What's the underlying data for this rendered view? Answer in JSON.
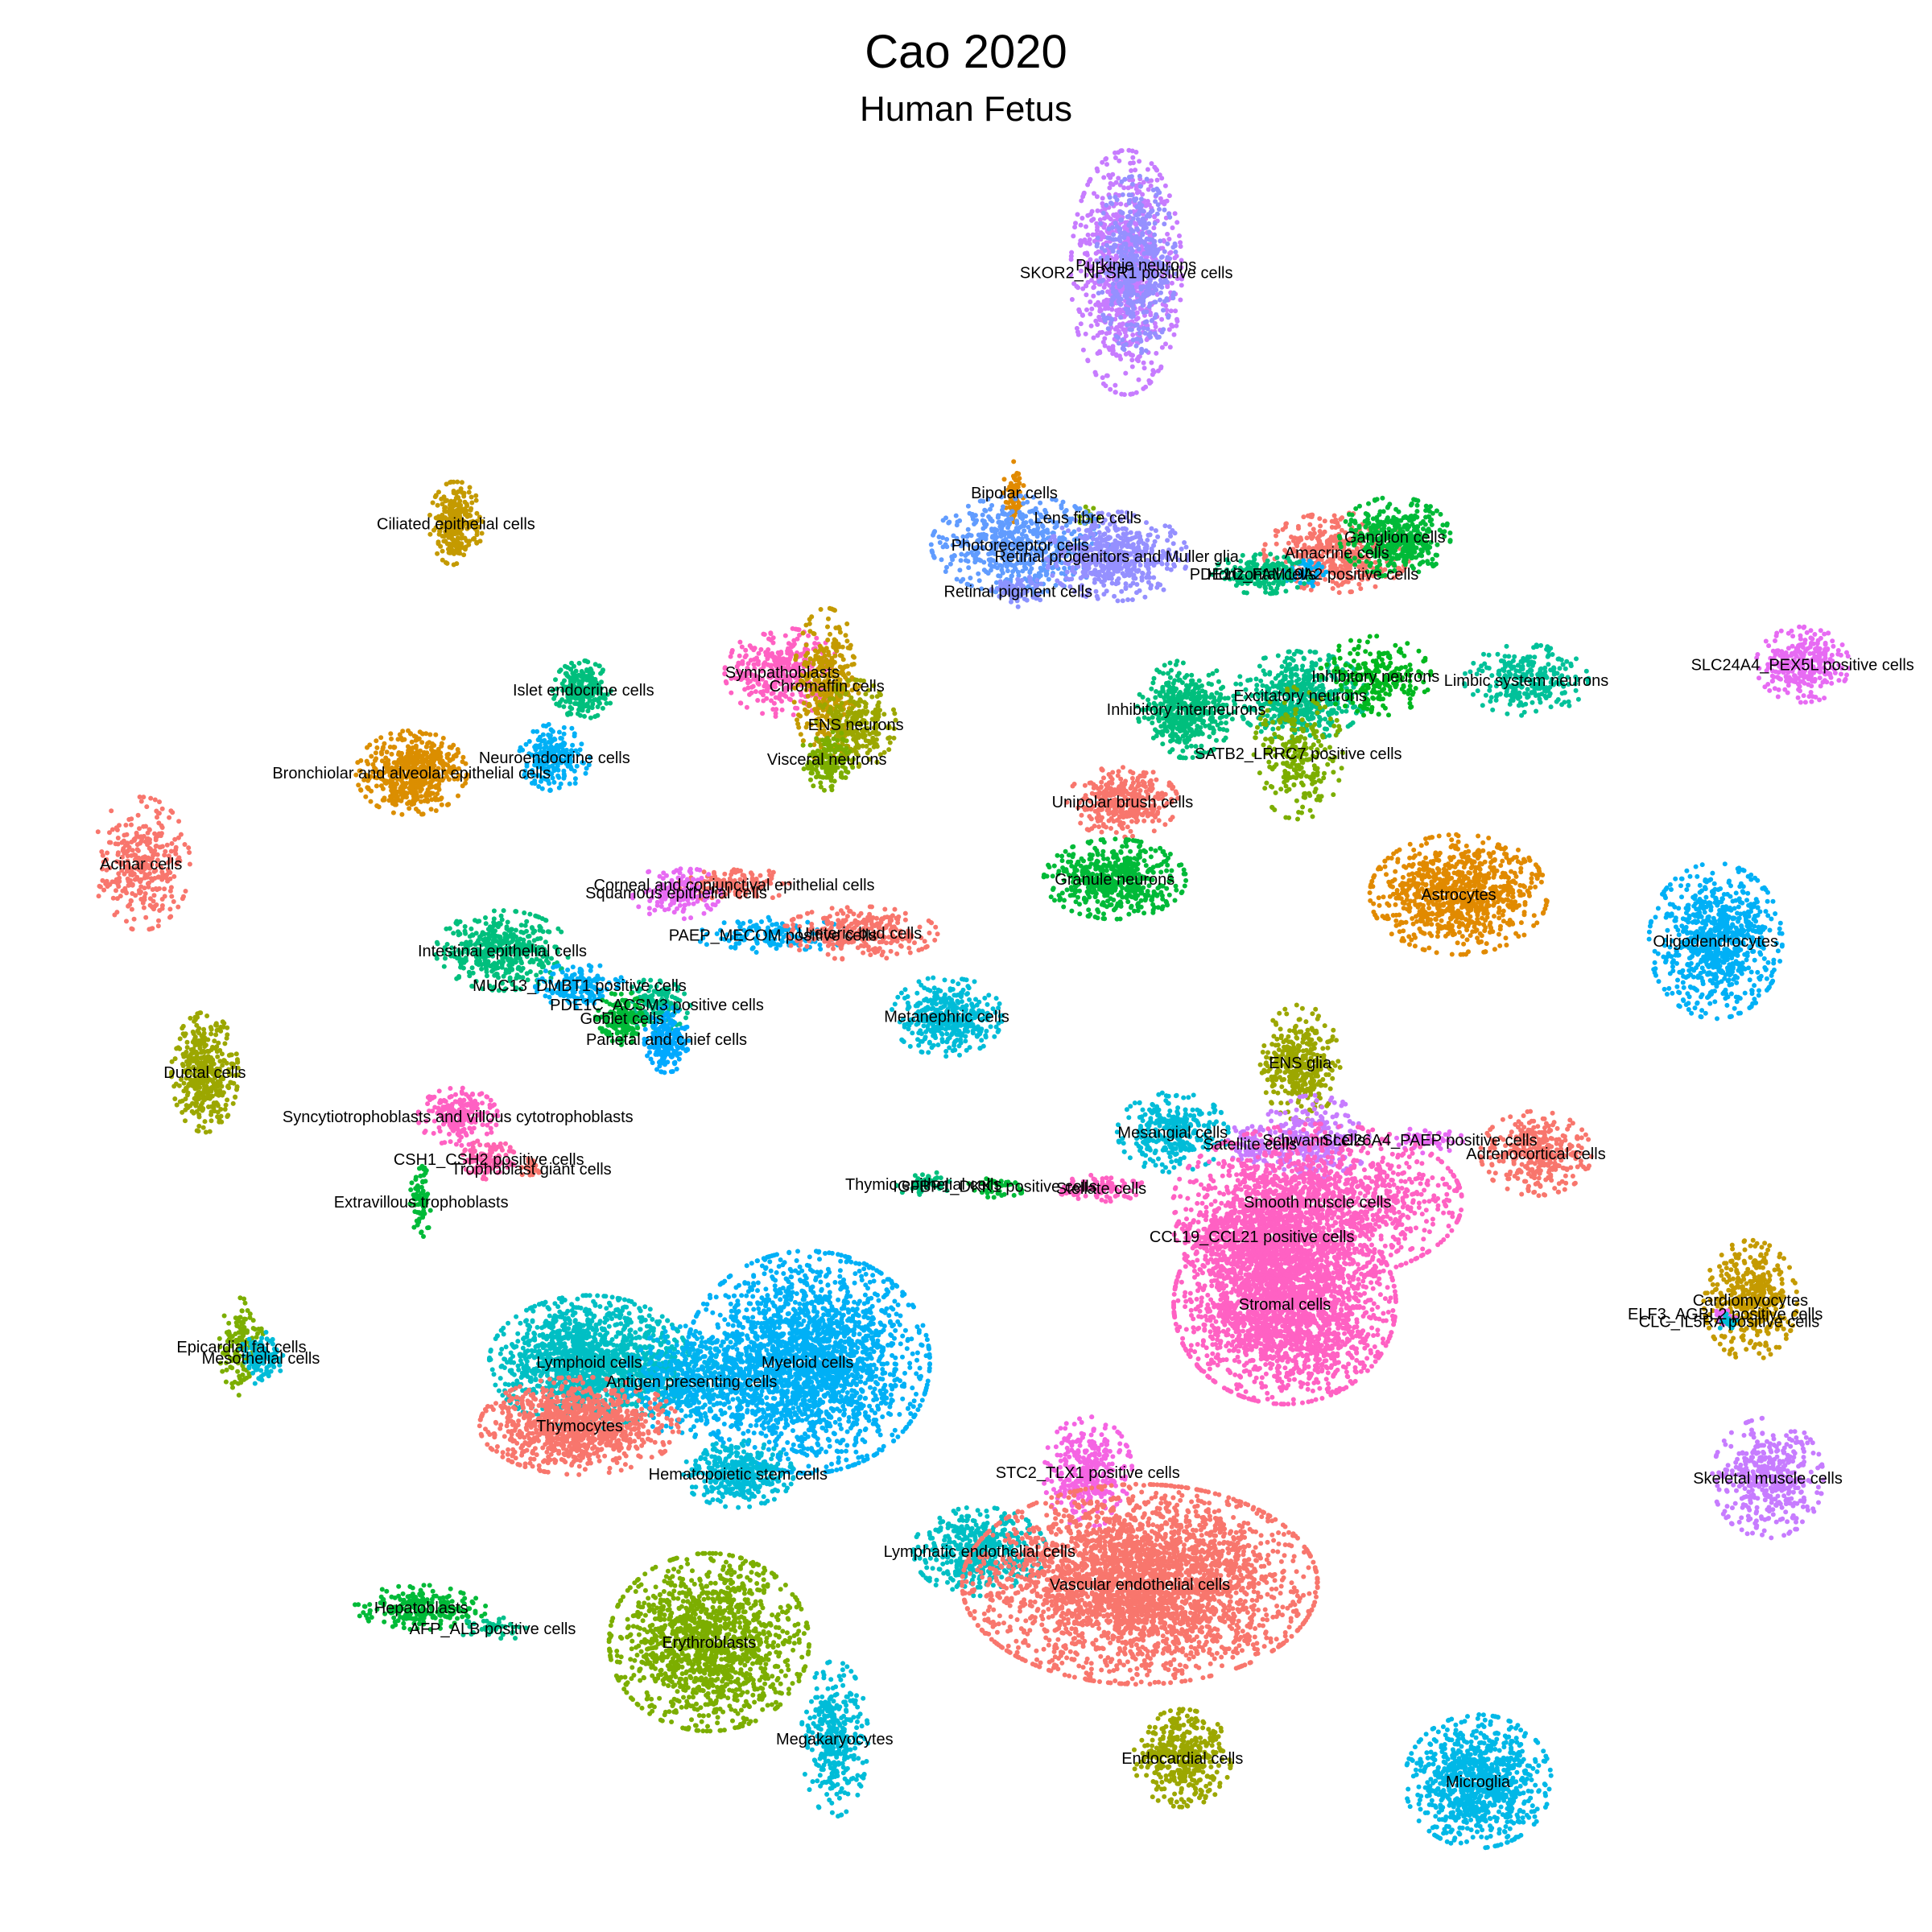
{
  "chart_data": {
    "type": "scatter",
    "title": "Cao 2020",
    "subtitle": "Human Fetus",
    "xlabel": "",
    "ylabel": "",
    "grid": false,
    "legend": "none",
    "clusters": [
      {
        "label": "SKOR2_NPSR1 positive cells",
        "color": "#C77CFF",
        "x": 0.583,
        "y": 0.141,
        "rx": 0.025,
        "ry": 0.055,
        "n": 900
      },
      {
        "label": "Purkinje neurons",
        "color": "#9590FF",
        "x": 0.588,
        "y": 0.137,
        "rx": 0.018,
        "ry": 0.04,
        "n": 500
      },
      {
        "label": "Bipolar cells",
        "color": "#E18A00",
        "x": 0.525,
        "y": 0.255,
        "rx": 0.005,
        "ry": 0.014,
        "n": 80
      },
      {
        "label": "Lens fibre cells",
        "color": "#7CAE00",
        "x": 0.563,
        "y": 0.268,
        "rx": 0.005,
        "ry": 0.005,
        "n": 20
      },
      {
        "label": "Photoreceptor cells",
        "color": "#619CFF",
        "x": 0.528,
        "y": 0.282,
        "rx": 0.04,
        "ry": 0.022,
        "n": 600
      },
      {
        "label": "Retinal progenitors and Muller glia",
        "color": "#9590FF",
        "x": 0.578,
        "y": 0.288,
        "rx": 0.032,
        "ry": 0.02,
        "n": 500
      },
      {
        "label": "Retinal pigment cells",
        "color": "#8B93FF",
        "x": 0.527,
        "y": 0.306,
        "rx": 0.012,
        "ry": 0.007,
        "n": 80
      },
      {
        "label": "Amacrine cells",
        "color": "#F8766D",
        "x": 0.692,
        "y": 0.286,
        "rx": 0.033,
        "ry": 0.018,
        "n": 450
      },
      {
        "label": "Ganglion cells",
        "color": "#00BA38",
        "x": 0.722,
        "y": 0.278,
        "rx": 0.025,
        "ry": 0.018,
        "n": 450
      },
      {
        "label": "PDE1C_FAM19A2 positive cells",
        "color": "#00B0F6",
        "x": 0.675,
        "y": 0.297,
        "rx": 0.01,
        "ry": 0.006,
        "n": 60
      },
      {
        "label": "Horizontal cells",
        "color": "#00BF7D",
        "x": 0.653,
        "y": 0.297,
        "rx": 0.022,
        "ry": 0.009,
        "n": 200
      },
      {
        "label": "Ciliated epithelial cells",
        "color": "#C49A00",
        "x": 0.236,
        "y": 0.271,
        "rx": 0.012,
        "ry": 0.019,
        "n": 260
      },
      {
        "label": "SLC24A4_PEX5L positive cells",
        "color": "#E76BF3",
        "x": 0.933,
        "y": 0.344,
        "rx": 0.021,
        "ry": 0.017,
        "n": 300
      },
      {
        "label": "Sympathoblasts",
        "color": "#FF61C3",
        "x": 0.405,
        "y": 0.348,
        "rx": 0.026,
        "ry": 0.02,
        "n": 350
      },
      {
        "label": "Chromaffin cells",
        "color": "#C49A00",
        "x": 0.428,
        "y": 0.355,
        "rx": 0.015,
        "ry": 0.035,
        "n": 350
      },
      {
        "label": "ENS neurons",
        "color": "#9CA700",
        "x": 0.443,
        "y": 0.375,
        "rx": 0.018,
        "ry": 0.02,
        "n": 250
      },
      {
        "label": "Visceral neurons",
        "color": "#7CAE00",
        "x": 0.428,
        "y": 0.393,
        "rx": 0.012,
        "ry": 0.014,
        "n": 150
      },
      {
        "label": "Islet endocrine cells",
        "color": "#00BF7D",
        "x": 0.302,
        "y": 0.357,
        "rx": 0.014,
        "ry": 0.013,
        "n": 230
      },
      {
        "label": "Neuroendocrine cells",
        "color": "#00B0F6",
        "x": 0.287,
        "y": 0.392,
        "rx": 0.016,
        "ry": 0.015,
        "n": 220
      },
      {
        "label": "Bronchiolar and alveolar epithelial cells",
        "color": "#DB8E00",
        "x": 0.213,
        "y": 0.4,
        "rx": 0.025,
        "ry": 0.019,
        "n": 550
      },
      {
        "label": "Acinar cells",
        "color": "#F8766D",
        "x": 0.073,
        "y": 0.447,
        "rx": 0.022,
        "ry": 0.03,
        "n": 330
      },
      {
        "label": "Inhibitory interneurons",
        "color": "#00BF7D",
        "x": 0.614,
        "y": 0.367,
        "rx": 0.022,
        "ry": 0.022,
        "n": 450
      },
      {
        "label": "Excitatory neurons",
        "color": "#00C08B",
        "x": 0.673,
        "y": 0.36,
        "rx": 0.03,
        "ry": 0.02,
        "n": 500
      },
      {
        "label": "Inhibitory neurons",
        "color": "#00B81F",
        "x": 0.712,
        "y": 0.35,
        "rx": 0.025,
        "ry": 0.018,
        "n": 250
      },
      {
        "label": "SATB2_LRRC7 positive cells",
        "color": "#7CAE00",
        "x": 0.672,
        "y": 0.39,
        "rx": 0.02,
        "ry": 0.03,
        "n": 250
      },
      {
        "label": "Limbic system neurons",
        "color": "#00C19A",
        "x": 0.79,
        "y": 0.352,
        "rx": 0.028,
        "ry": 0.016,
        "n": 280
      },
      {
        "label": "Unipolar brush cells",
        "color": "#F8766D",
        "x": 0.581,
        "y": 0.415,
        "rx": 0.025,
        "ry": 0.016,
        "n": 350
      },
      {
        "label": "Granule neurons",
        "color": "#00BA38",
        "x": 0.577,
        "y": 0.455,
        "rx": 0.032,
        "ry": 0.018,
        "n": 520
      },
      {
        "label": "Astrocytes",
        "color": "#E18A00",
        "x": 0.755,
        "y": 0.463,
        "rx": 0.04,
        "ry": 0.027,
        "n": 900
      },
      {
        "label": "Oligodendrocytes",
        "color": "#00B0F6",
        "x": 0.888,
        "y": 0.487,
        "rx": 0.03,
        "ry": 0.035,
        "n": 800
      },
      {
        "label": "Corneal and conjunctival epithelial cells",
        "color": "#F8766D",
        "x": 0.38,
        "y": 0.458,
        "rx": 0.025,
        "ry": 0.008,
        "n": 150
      },
      {
        "label": "Squamous epithelial cells",
        "color": "#E76BF3",
        "x": 0.35,
        "y": 0.462,
        "rx": 0.02,
        "ry": 0.012,
        "n": 150
      },
      {
        "label": "PAEP_MECOM positive cells",
        "color": "#00B0F6",
        "x": 0.4,
        "y": 0.484,
        "rx": 0.035,
        "ry": 0.008,
        "n": 150
      },
      {
        "label": "Ureteric bud cells",
        "color": "#F8766D",
        "x": 0.445,
        "y": 0.483,
        "rx": 0.035,
        "ry": 0.012,
        "n": 300
      },
      {
        "label": "Intestinal epithelial cells",
        "color": "#00BF7D",
        "x": 0.26,
        "y": 0.492,
        "rx": 0.03,
        "ry": 0.018,
        "n": 450
      },
      {
        "label": "MUC13_DMBT1 positive cells",
        "color": "#00B0F6",
        "x": 0.3,
        "y": 0.51,
        "rx": 0.02,
        "ry": 0.01,
        "n": 150
      },
      {
        "label": "PDE1C_ACSM3 positive cells",
        "color": "#00C08B",
        "x": 0.34,
        "y": 0.52,
        "rx": 0.015,
        "ry": 0.012,
        "n": 150
      },
      {
        "label": "Goblet cells",
        "color": "#00BA38",
        "x": 0.322,
        "y": 0.527,
        "rx": 0.012,
        "ry": 0.012,
        "n": 150
      },
      {
        "label": "Parietal and chief cells",
        "color": "#00A9FF",
        "x": 0.345,
        "y": 0.538,
        "rx": 0.01,
        "ry": 0.015,
        "n": 200
      },
      {
        "label": "Metanephric cells",
        "color": "#00BCD8",
        "x": 0.49,
        "y": 0.526,
        "rx": 0.025,
        "ry": 0.018,
        "n": 400
      },
      {
        "label": "Ductal cells",
        "color": "#9CA700",
        "x": 0.106,
        "y": 0.555,
        "rx": 0.015,
        "ry": 0.027,
        "n": 420
      },
      {
        "label": "Syncytiotrophoblasts and villous cytotrophoblasts",
        "color": "#FF61C3",
        "x": 0.237,
        "y": 0.578,
        "rx": 0.018,
        "ry": 0.013,
        "n": 230
      },
      {
        "label": "CSH1_CSH2 positive cells",
        "color": "#FF64B0",
        "x": 0.253,
        "y": 0.6,
        "rx": 0.012,
        "ry": 0.009,
        "n": 120
      },
      {
        "label": "Trophoblast giant cells",
        "color": "#F8766D",
        "x": 0.275,
        "y": 0.605,
        "rx": 0.005,
        "ry": 0.005,
        "n": 25
      },
      {
        "label": "Extravillous trophoblasts",
        "color": "#00BA38",
        "x": 0.218,
        "y": 0.622,
        "rx": 0.005,
        "ry": 0.016,
        "n": 70
      },
      {
        "label": "Thymic epithelial cells",
        "color": "#00BF7D",
        "x": 0.478,
        "y": 0.613,
        "rx": 0.012,
        "ry": 0.006,
        "n": 50
      },
      {
        "label": "IGFBP1_DKK1 positive cells",
        "color": "#00BA38",
        "x": 0.515,
        "y": 0.614,
        "rx": 0.015,
        "ry": 0.005,
        "n": 40
      },
      {
        "label": "Stellate cells",
        "color": "#FF61C3",
        "x": 0.57,
        "y": 0.615,
        "rx": 0.02,
        "ry": 0.006,
        "n": 100
      },
      {
        "label": "ENS glia",
        "color": "#9CA700",
        "x": 0.673,
        "y": 0.55,
        "rx": 0.018,
        "ry": 0.026,
        "n": 350
      },
      {
        "label": "Mesangial cells",
        "color": "#00BCD8",
        "x": 0.607,
        "y": 0.586,
        "rx": 0.025,
        "ry": 0.018,
        "n": 320
      },
      {
        "label": "Satellite cells",
        "color": "#C77CFF",
        "x": 0.647,
        "y": 0.592,
        "rx": 0.01,
        "ry": 0.01,
        "n": 80
      },
      {
        "label": "Schwann cells",
        "color": "#C77CFF",
        "x": 0.68,
        "y": 0.59,
        "rx": 0.025,
        "ry": 0.02,
        "n": 300
      },
      {
        "label": "SLC26A4_PAEP positive cells",
        "color": "#E76BF3",
        "x": 0.74,
        "y": 0.59,
        "rx": 0.015,
        "ry": 0.006,
        "n": 60
      },
      {
        "label": "Adrenocortical cells",
        "color": "#F8766D",
        "x": 0.795,
        "y": 0.597,
        "rx": 0.025,
        "ry": 0.019,
        "n": 350
      },
      {
        "label": "Smooth muscle cells",
        "color": "#FF61C3",
        "x": 0.682,
        "y": 0.622,
        "rx": 0.065,
        "ry": 0.035,
        "n": 1400
      },
      {
        "label": "CCL19_CCL21 positive cells",
        "color": "#FF61C3",
        "x": 0.648,
        "y": 0.64,
        "rx": 0.035,
        "ry": 0.02,
        "n": 500
      },
      {
        "label": "Stromal cells",
        "color": "#FF61C3",
        "x": 0.665,
        "y": 0.675,
        "rx": 0.05,
        "ry": 0.045,
        "n": 2400
      },
      {
        "label": "Cardiomyocytes",
        "color": "#C49A00",
        "x": 0.906,
        "y": 0.673,
        "rx": 0.021,
        "ry": 0.027,
        "n": 420
      },
      {
        "label": "ELF3_AGBL2 positive cells",
        "color": "#E76BF3",
        "x": 0.893,
        "y": 0.68,
        "rx": 0.005,
        "ry": 0.005,
        "n": 20
      },
      {
        "label": "CLC_IL5RA positive cells",
        "color": "#00BCD8",
        "x": 0.895,
        "y": 0.684,
        "rx": 0.005,
        "ry": 0.005,
        "n": 20
      },
      {
        "label": "Epicardial fat cells",
        "color": "#7CAE00",
        "x": 0.125,
        "y": 0.697,
        "rx": 0.01,
        "ry": 0.022,
        "n": 150
      },
      {
        "label": "Mesothelial cells",
        "color": "#00BCD8",
        "x": 0.135,
        "y": 0.703,
        "rx": 0.01,
        "ry": 0.012,
        "n": 120
      },
      {
        "label": "Lymphoid cells",
        "color": "#00BFC4",
        "x": 0.305,
        "y": 0.705,
        "rx": 0.045,
        "ry": 0.03,
        "n": 1500
      },
      {
        "label": "Antigen presenting cells",
        "color": "#00B4EF",
        "x": 0.358,
        "y": 0.715,
        "rx": 0.03,
        "ry": 0.025,
        "n": 500
      },
      {
        "label": "Myeloid cells",
        "color": "#00B0F6",
        "x": 0.418,
        "y": 0.705,
        "rx": 0.055,
        "ry": 0.05,
        "n": 2300
      },
      {
        "label": "Thymocytes",
        "color": "#F8766D",
        "x": 0.3,
        "y": 0.738,
        "rx": 0.045,
        "ry": 0.022,
        "n": 1000
      },
      {
        "label": "Hematopoietic stem cells",
        "color": "#00BCD8",
        "x": 0.382,
        "y": 0.763,
        "rx": 0.025,
        "ry": 0.015,
        "n": 400
      },
      {
        "label": "STC2_TLX1 positive cells",
        "color": "#F564E3",
        "x": 0.563,
        "y": 0.762,
        "rx": 0.02,
        "ry": 0.025,
        "n": 350
      },
      {
        "label": "Lymphatic endothelial cells",
        "color": "#00BFC4",
        "x": 0.507,
        "y": 0.803,
        "rx": 0.03,
        "ry": 0.02,
        "n": 500
      },
      {
        "label": "Vascular endothelial cells",
        "color": "#F8766D",
        "x": 0.59,
        "y": 0.82,
        "rx": 0.08,
        "ry": 0.045,
        "n": 3200
      },
      {
        "label": "Skeletal muscle cells",
        "color": "#C77CFF",
        "x": 0.915,
        "y": 0.765,
        "rx": 0.025,
        "ry": 0.027,
        "n": 430
      },
      {
        "label": "Hepatoblasts",
        "color": "#00BA38",
        "x": 0.218,
        "y": 0.832,
        "rx": 0.03,
        "ry": 0.01,
        "n": 220
      },
      {
        "label": "AFP_ALB positive cells",
        "color": "#00C08B",
        "x": 0.255,
        "y": 0.843,
        "rx": 0.015,
        "ry": 0.006,
        "n": 40
      },
      {
        "label": "Erythroblasts",
        "color": "#7CAE00",
        "x": 0.367,
        "y": 0.85,
        "rx": 0.045,
        "ry": 0.04,
        "n": 1400
      },
      {
        "label": "Megakaryocytes",
        "color": "#00BCD8",
        "x": 0.432,
        "y": 0.9,
        "rx": 0.015,
        "ry": 0.035,
        "n": 350
      },
      {
        "label": "Endocardial cells",
        "color": "#9CA700",
        "x": 0.612,
        "y": 0.91,
        "rx": 0.022,
        "ry": 0.022,
        "n": 400
      },
      {
        "label": "Microglia",
        "color": "#00B8E7",
        "x": 0.765,
        "y": 0.922,
        "rx": 0.033,
        "ry": 0.03,
        "n": 900
      }
    ]
  }
}
